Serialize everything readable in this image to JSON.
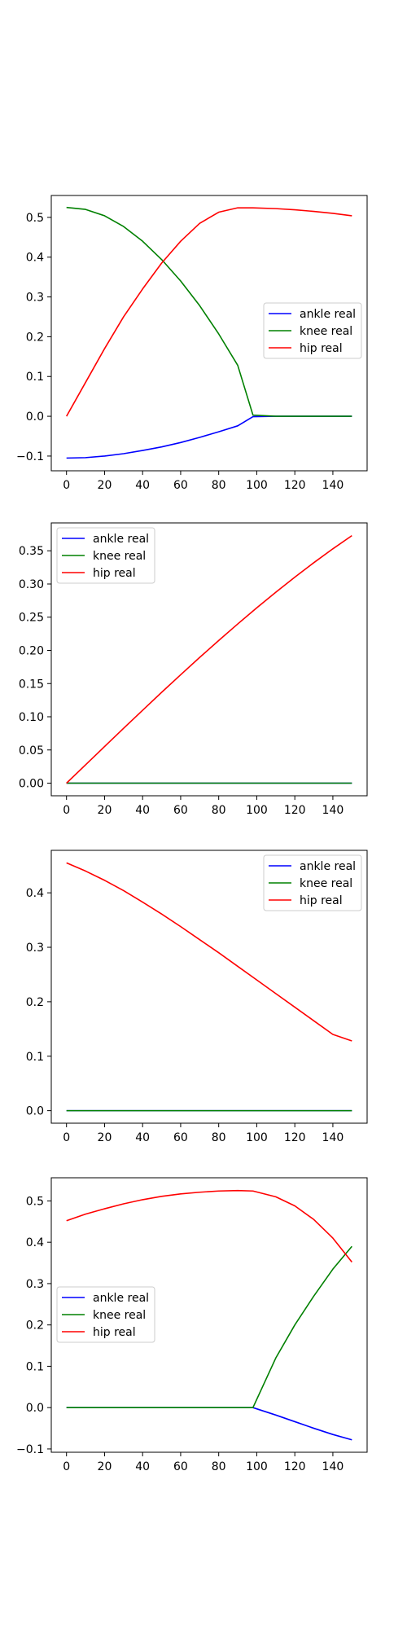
{
  "chart_data": [
    {
      "type": "line",
      "x": [
        0,
        10,
        20,
        30,
        40,
        50,
        60,
        70,
        80,
        90,
        98,
        110,
        120,
        130,
        140,
        150
      ],
      "series": [
        {
          "name": "ankle real",
          "color": "#0000ff",
          "values": [
            -0.105,
            -0.104,
            -0.1,
            -0.094,
            -0.086,
            -0.077,
            -0.066,
            -0.053,
            -0.039,
            -0.024,
            -0.001,
            0,
            0,
            0,
            0,
            0
          ]
        },
        {
          "name": "knee real",
          "color": "#008000",
          "values": [
            0.525,
            0.52,
            0.504,
            0.477,
            0.44,
            0.394,
            0.34,
            0.278,
            0.207,
            0.128,
            0.003,
            0,
            0,
            0,
            0,
            0
          ]
        },
        {
          "name": "hip real",
          "color": "#ff0000",
          "values": [
            0.0,
            0.085,
            0.17,
            0.25,
            0.32,
            0.385,
            0.44,
            0.485,
            0.513,
            0.524,
            0.524,
            0.522,
            0.519,
            0.515,
            0.51,
            0.504
          ]
        }
      ],
      "xticks": [
        0,
        20,
        40,
        60,
        80,
        100,
        120,
        140
      ],
      "yticks": [
        -0.1,
        0.0,
        0.1,
        0.2,
        0.3,
        0.4,
        0.5
      ],
      "ytick_labels": [
        "−0.1",
        "0.0",
        "0.1",
        "0.2",
        "0.3",
        "0.4",
        "0.5"
      ],
      "xlim": [
        -8,
        158
      ],
      "ylim": [
        -0.137,
        0.555
      ],
      "grid": false,
      "legend_position": "center-right"
    },
    {
      "type": "line",
      "x": [
        0,
        10,
        20,
        30,
        40,
        50,
        60,
        70,
        80,
        90,
        100,
        110,
        120,
        130,
        140,
        150
      ],
      "series": [
        {
          "name": "ankle real",
          "color": "#0000ff",
          "values": [
            0,
            0,
            0,
            0,
            0,
            0,
            0,
            0,
            0,
            0,
            0,
            0,
            0,
            0,
            0,
            0
          ]
        },
        {
          "name": "knee real",
          "color": "#008000",
          "values": [
            0,
            0,
            0,
            0,
            0,
            0,
            0,
            0,
            0,
            0,
            0,
            0,
            0,
            0,
            0,
            0
          ]
        },
        {
          "name": "hip real",
          "color": "#ff0000",
          "values": [
            0.0,
            0.0276,
            0.0552,
            0.0826,
            0.1098,
            0.1368,
            0.1633,
            0.1894,
            0.2149,
            0.2398,
            0.2641,
            0.2876,
            0.3103,
            0.3321,
            0.353,
            0.3728
          ]
        }
      ],
      "xticks": [
        0,
        20,
        40,
        60,
        80,
        100,
        120,
        140
      ],
      "yticks": [
        0.0,
        0.05,
        0.1,
        0.15,
        0.2,
        0.25,
        0.3,
        0.35
      ],
      "ytick_labels": [
        "0.00",
        "0.05",
        "0.10",
        "0.15",
        "0.20",
        "0.25",
        "0.30",
        "0.35"
      ],
      "xlim": [
        -8,
        158
      ],
      "ylim": [
        -0.019,
        0.392
      ],
      "grid": false,
      "legend_position": "top-left"
    },
    {
      "type": "line",
      "x": [
        0,
        10,
        20,
        30,
        40,
        50,
        60,
        70,
        80,
        90,
        100,
        110,
        120,
        130,
        140,
        150
      ],
      "series": [
        {
          "name": "ankle real",
          "color": "#0000ff",
          "values": [
            0,
            0,
            0,
            0,
            0,
            0,
            0,
            0,
            0,
            0,
            0,
            0,
            0,
            0,
            0,
            0
          ]
        },
        {
          "name": "knee real",
          "color": "#008000",
          "values": [
            0,
            0,
            0,
            0,
            0,
            0,
            0,
            0,
            0,
            0,
            0,
            0,
            0,
            0,
            0,
            0
          ]
        },
        {
          "name": "hip real",
          "color": "#ff0000",
          "values": [
            0.455,
            0.44,
            0.423,
            0.404,
            0.383,
            0.361,
            0.338,
            0.314,
            0.29,
            0.265,
            0.24,
            0.215,
            0.19,
            0.165,
            0.14,
            0.128
          ]
        }
      ],
      "xticks": [
        0,
        20,
        40,
        60,
        80,
        100,
        120,
        140
      ],
      "yticks": [
        0.0,
        0.1,
        0.2,
        0.3,
        0.4
      ],
      "ytick_labels": [
        "0.0",
        "0.1",
        "0.2",
        "0.3",
        "0.4"
      ],
      "xlim": [
        -8,
        158
      ],
      "ylim": [
        -0.023,
        0.478
      ],
      "grid": false,
      "legend_position": "top-right"
    },
    {
      "type": "line",
      "x": [
        0,
        10,
        20,
        30,
        40,
        50,
        60,
        70,
        80,
        90,
        98,
        110,
        120,
        130,
        140,
        150
      ],
      "series": [
        {
          "name": "ankle real",
          "color": "#0000ff",
          "values": [
            0,
            0,
            0,
            0,
            0,
            0,
            0,
            0,
            0,
            0,
            0,
            -0.018,
            -0.034,
            -0.05,
            -0.065,
            -0.078
          ]
        },
        {
          "name": "knee real",
          "color": "#008000",
          "values": [
            0,
            0,
            0,
            0,
            0,
            0,
            0,
            0,
            0,
            0,
            0,
            0.12,
            0.2,
            0.27,
            0.335,
            0.39
          ]
        },
        {
          "name": "hip real",
          "color": "#ff0000",
          "values": [
            0.452,
            0.468,
            0.481,
            0.493,
            0.503,
            0.511,
            0.517,
            0.521,
            0.524,
            0.525,
            0.524,
            0.51,
            0.488,
            0.455,
            0.41,
            0.352
          ]
        }
      ],
      "xticks": [
        0,
        20,
        40,
        60,
        80,
        100,
        120,
        140
      ],
      "yticks": [
        -0.1,
        0.0,
        0.1,
        0.2,
        0.3,
        0.4,
        0.5
      ],
      "ytick_labels": [
        "−0.1",
        "0.0",
        "0.1",
        "0.2",
        "0.3",
        "0.4",
        "0.5"
      ],
      "xlim": [
        -8,
        158
      ],
      "ylim": [
        -0.108,
        0.556
      ],
      "grid": false,
      "legend_position": "center-left"
    }
  ]
}
